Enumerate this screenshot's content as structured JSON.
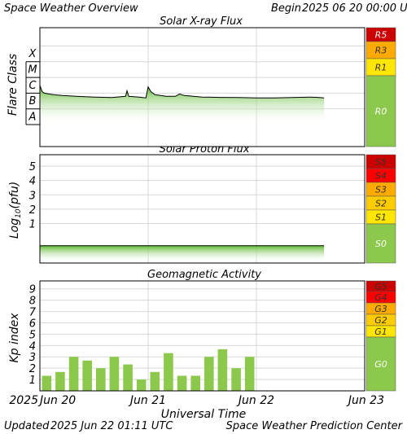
{
  "header": {
    "title": "Space Weather Overview",
    "begin_label": "Begin",
    "begin_date": "2025 06 20 00:00 UTC"
  },
  "footer": {
    "updated_label": "Updated",
    "updated_value": "2025 Jun 22 01:11 UTC",
    "source": "Space Weather Prediction Center"
  },
  "x_axis": {
    "label": "Universal Time",
    "year": "2025",
    "tick_labels": [
      "Jun 20",
      "Jun 21",
      "Jun 22",
      "Jun 23"
    ],
    "range_hours": [
      0,
      72
    ]
  },
  "colors": {
    "fill_green": "#8cc84b",
    "bar_green": "#8cc84b",
    "scale_green": "#8cc84b",
    "yellow": "#ffe600",
    "orange": "#ffaa00",
    "dark_orange": "#ff8800",
    "red": "#ff0000",
    "dark_red": "#cc0000",
    "grid": "#d8d8d8"
  },
  "chart_data": [
    {
      "type": "area",
      "title": "Solar X-ray Flux",
      "ylabel": "Flare Class",
      "y_tick_labels": [
        "A",
        "B",
        "C",
        "M",
        "X"
      ],
      "scale": [
        {
          "label": "R0",
          "color": "#8cc84b"
        },
        {
          "label": "R1",
          "color": "#ffe600"
        },
        {
          "label": "R3",
          "color": "#ffaa00"
        },
        {
          "label": "R5",
          "color": "#cc0000"
        }
      ],
      "log_flux_points": [
        [
          0,
          -5.5
        ],
        [
          0.5,
          -5.9
        ],
        [
          1,
          -6.0
        ],
        [
          2,
          -6.05
        ],
        [
          3,
          -6.1
        ],
        [
          5,
          -6.15
        ],
        [
          8,
          -6.2
        ],
        [
          12,
          -6.25
        ],
        [
          16,
          -6.28
        ],
        [
          19,
          -6.2
        ],
        [
          19.3,
          -5.85
        ],
        [
          19.7,
          -6.2
        ],
        [
          22,
          -6.25
        ],
        [
          23.5,
          -6.3
        ],
        [
          24,
          -5.6
        ],
        [
          24.6,
          -5.9
        ],
        [
          25.5,
          -6.1
        ],
        [
          28,
          -6.2
        ],
        [
          30,
          -6.2
        ],
        [
          31,
          -6.05
        ],
        [
          32,
          -6.15
        ],
        [
          36,
          -6.25
        ],
        [
          40,
          -6.27
        ],
        [
          44,
          -6.28
        ],
        [
          48,
          -6.3
        ],
        [
          52,
          -6.3
        ],
        [
          56,
          -6.28
        ],
        [
          60,
          -6.25
        ],
        [
          62,
          -6.28
        ],
        [
          63,
          -6.3
        ]
      ]
    },
    {
      "type": "area",
      "title": "Solar Proton Flux",
      "ylabel": "Log10(pfu)",
      "y_ticks": [
        1,
        2,
        3,
        4,
        5
      ],
      "ylim": [
        -1.7,
        5.8
      ],
      "scale": [
        {
          "label": "S0",
          "color": "#8cc84b"
        },
        {
          "label": "S1",
          "color": "#ffe600"
        },
        {
          "label": "S2",
          "color": "#ffcc00"
        },
        {
          "label": "S3",
          "color": "#ffaa00"
        },
        {
          "label": "S4",
          "color": "#ff0000"
        },
        {
          "label": "S5",
          "color": "#cc0000"
        }
      ],
      "series": [
        {
          "x_range_hours": [
            0,
            63
          ],
          "value": -0.55
        }
      ]
    },
    {
      "type": "bar",
      "title": "Geomagnetic Activity",
      "ylabel": "Kp index",
      "y_ticks": [
        1,
        2,
        3,
        4,
        5,
        6,
        7,
        8,
        9
      ],
      "ylim": [
        0,
        9.7
      ],
      "bar_interval_hours": 3,
      "values": [
        1.33,
        1.67,
        3.0,
        2.67,
        2.0,
        3.0,
        2.33,
        1.0,
        1.67,
        3.33,
        1.33,
        1.33,
        3.0,
        3.67,
        2.0,
        3.0
      ],
      "scale": [
        {
          "label": "G0",
          "color": "#8cc84b"
        },
        {
          "label": "G1",
          "color": "#ffe600"
        },
        {
          "label": "G2",
          "color": "#ffcc00"
        },
        {
          "label": "G3",
          "color": "#ffaa00"
        },
        {
          "label": "G4",
          "color": "#ff0000"
        },
        {
          "label": "G5",
          "color": "#cc0000"
        }
      ]
    }
  ]
}
